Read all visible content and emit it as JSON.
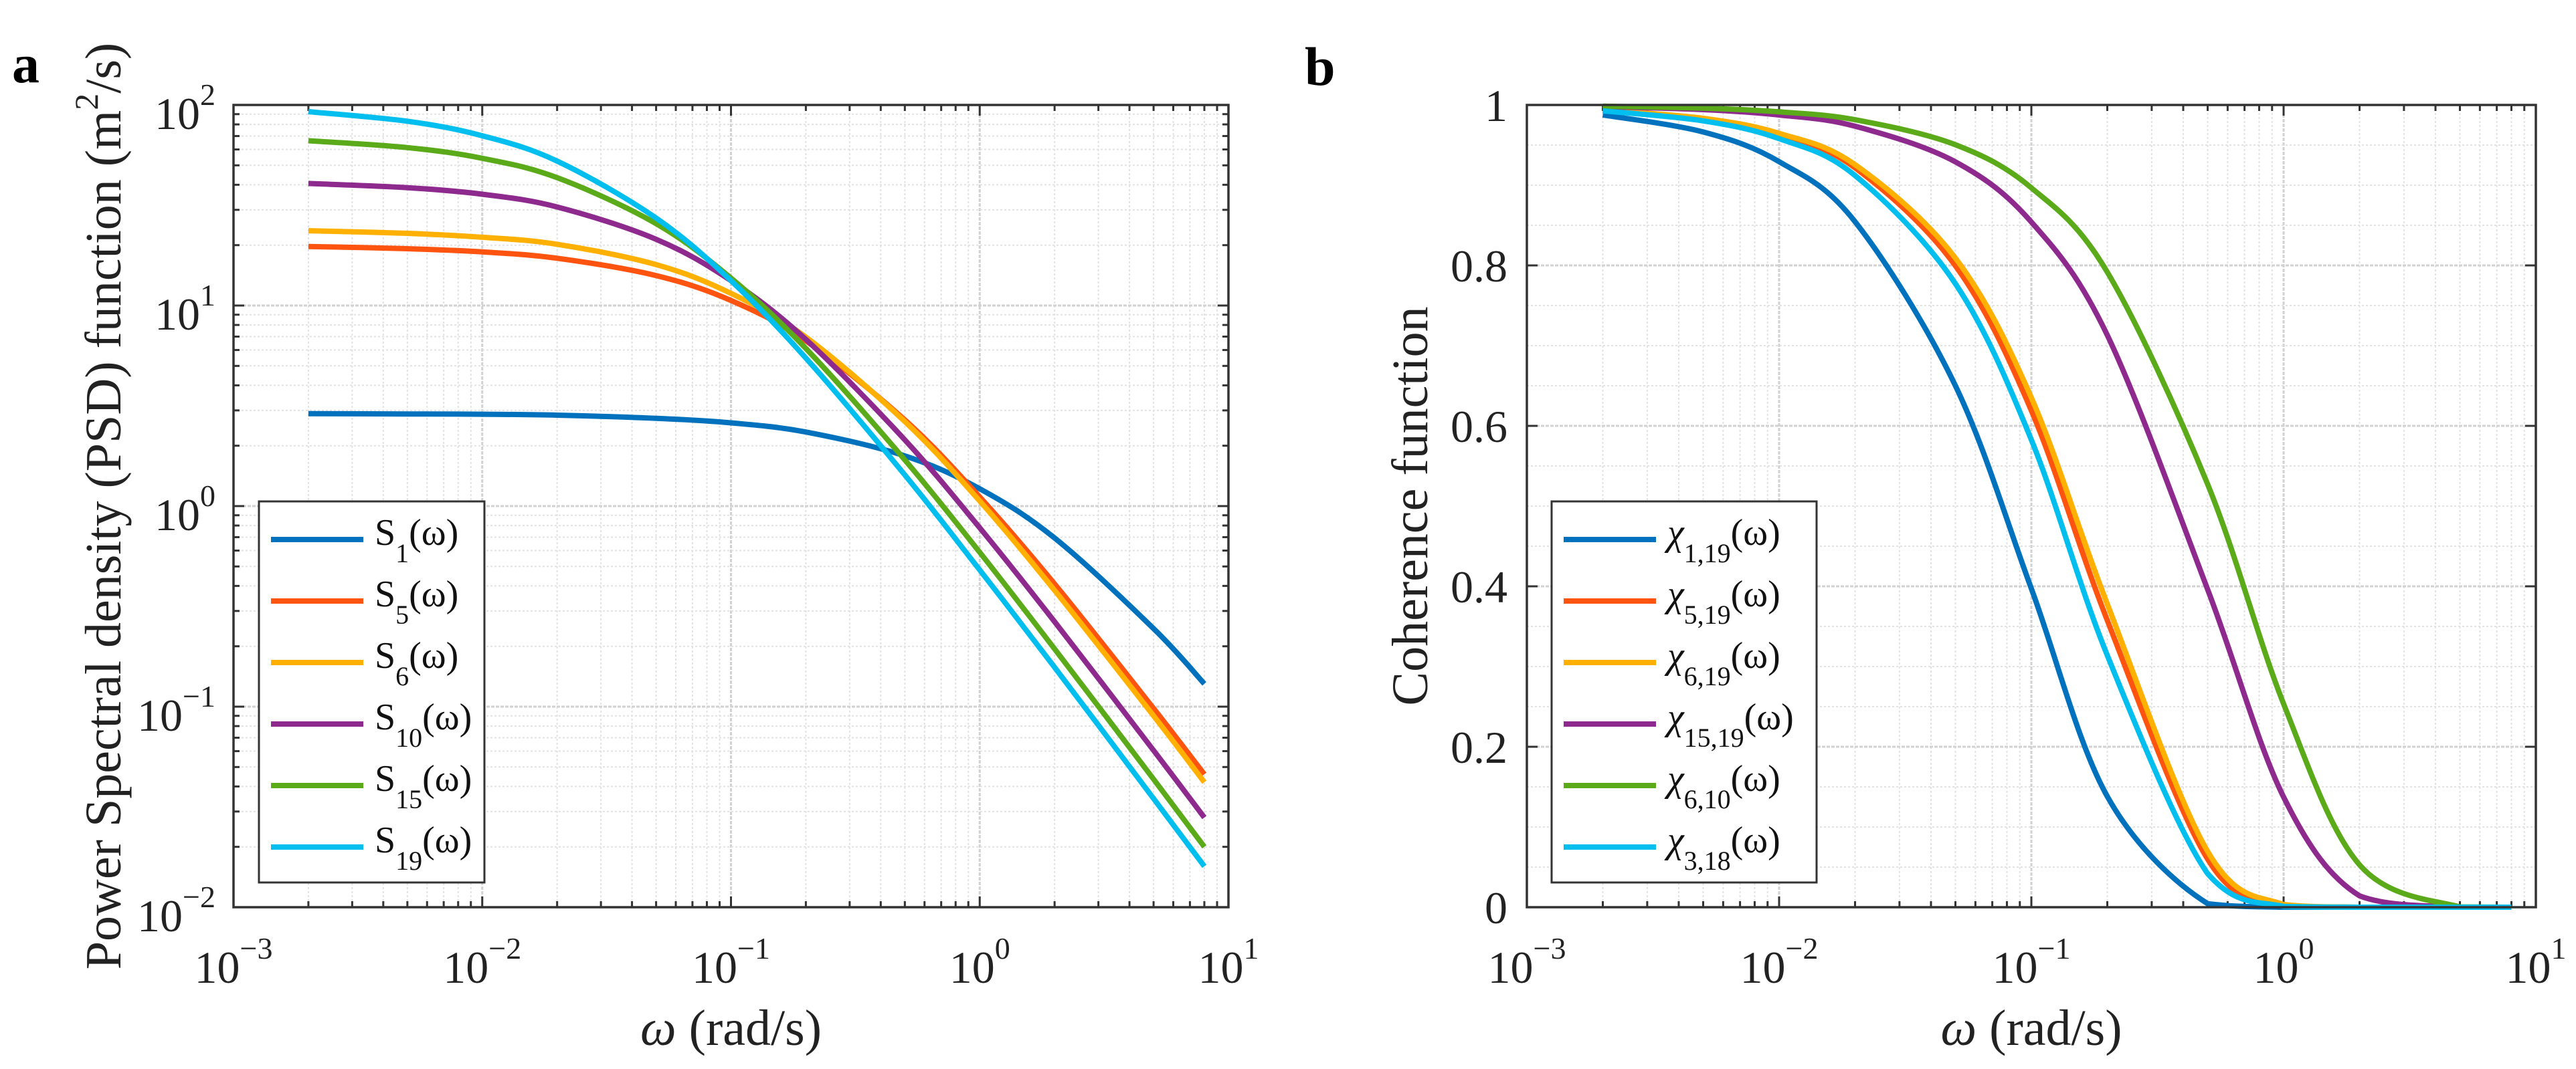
{
  "figure": {
    "panel_a": "a",
    "panel_b": "b"
  },
  "chart_data": [
    {
      "type": "line",
      "panel": "a",
      "xscale": "log",
      "yscale": "log",
      "xlim": [
        0.001,
        10
      ],
      "ylim": [
        0.01,
        100
      ],
      "grid": true,
      "legend_position": "bottom-left",
      "xlabel": {
        "symbol": "ω",
        "text": " (rad/s)"
      },
      "ylabel": {
        "pre": "Power Spectral density (PSD) function (m",
        "sup": "2",
        "post": "/s)"
      },
      "xticks": [
        {
          "base": "10",
          "exp": "−3",
          "value": 0.001
        },
        {
          "base": "10",
          "exp": "−2",
          "value": 0.01
        },
        {
          "base": "10",
          "exp": "−1",
          "value": 0.1
        },
        {
          "base": "10",
          "exp": "0",
          "value": 1
        },
        {
          "base": "10",
          "exp": "1",
          "value": 10
        }
      ],
      "yticks": [
        {
          "base": "10",
          "exp": "−2",
          "value": 0.01
        },
        {
          "base": "10",
          "exp": "−1",
          "value": 0.1
        },
        {
          "base": "10",
          "exp": "0",
          "value": 1
        },
        {
          "base": "10",
          "exp": "1",
          "value": 10
        },
        {
          "base": "10",
          "exp": "2",
          "value": 100
        }
      ],
      "x": [
        0.002,
        0.005,
        0.01,
        0.02,
        0.05,
        0.1,
        0.2,
        0.5,
        1,
        2,
        5,
        8
      ],
      "series": [
        {
          "name": "S1(ω)",
          "base": "S",
          "sub": "1",
          "arg": "(ω)",
          "color": "#0072BD",
          "values": [
            2.89,
            2.88,
            2.87,
            2.84,
            2.74,
            2.6,
            2.34,
            1.78,
            1.22,
            0.693,
            0.245,
            0.13
          ]
        },
        {
          "name": "S5(ω)",
          "base": "S",
          "sub": "5",
          "arg": "(ω)",
          "color": "#FF5310",
          "values": [
            19.7,
            19.2,
            18.5,
            17.2,
            14.1,
            10.6,
            6.67,
            2.69,
            1.11,
            0.409,
            0.098,
            0.046
          ]
        },
        {
          "name": "S6(ω)",
          "base": "S",
          "sub": "6",
          "arg": "(ω)",
          "color": "#FFB000",
          "values": [
            23.6,
            22.9,
            21.9,
            20.2,
            16.0,
            11.5,
            6.96,
            2.64,
            1.06,
            0.38,
            0.09,
            0.042
          ]
        },
        {
          "name": "S10(ω)",
          "base": "S",
          "sub": "10",
          "arg": "(ω)",
          "color": "#8E2A8E",
          "values": [
            40.6,
            38.7,
            35.9,
            31.0,
            21.4,
            13.3,
            6.78,
            2.14,
            0.779,
            0.265,
            0.0605,
            0.028
          ]
        },
        {
          "name": "S15(ω)",
          "base": "S",
          "sub": "15",
          "arg": "(ω)",
          "color": "#5AAA1A",
          "values": [
            66.3,
            61.3,
            54.2,
            43.4,
            25.6,
            13.7,
            6.11,
            1.7,
            0.588,
            0.194,
            0.0435,
            0.02
          ]
        },
        {
          "name": "S19(ω)",
          "base": "S",
          "sub": "19",
          "arg": "(ω)",
          "color": "#00BEEE",
          "values": [
            92.6,
            83.0,
            70.2,
            52.5,
            27.3,
            13.3,
            5.47,
            1.43,
            0.48,
            0.157,
            0.0348,
            0.016
          ]
        }
      ]
    },
    {
      "type": "line",
      "panel": "b",
      "xscale": "log",
      "yscale": "linear",
      "xlim": [
        0.001,
        10
      ],
      "ylim": [
        0,
        1
      ],
      "grid": true,
      "legend_position": "bottom-left",
      "xlabel": {
        "symbol": "ω",
        "text": " (rad/s)"
      },
      "ylabel": {
        "pre": "Coherence function",
        "sup": "",
        "post": ""
      },
      "xticks": [
        {
          "base": "10",
          "exp": "−3",
          "value": 0.001
        },
        {
          "base": "10",
          "exp": "−2",
          "value": 0.01
        },
        {
          "base": "10",
          "exp": "−1",
          "value": 0.1
        },
        {
          "base": "10",
          "exp": "0",
          "value": 1
        },
        {
          "base": "10",
          "exp": "1",
          "value": 10
        }
      ],
      "yticks": [
        {
          "base": "0",
          "exp": "",
          "value": 0
        },
        {
          "base": "0.2",
          "exp": "",
          "value": 0.2
        },
        {
          "base": "0.4",
          "exp": "",
          "value": 0.4
        },
        {
          "base": "0.6",
          "exp": "",
          "value": 0.6
        },
        {
          "base": "0.8",
          "exp": "",
          "value": 0.8
        },
        {
          "base": "1",
          "exp": "",
          "value": 1
        }
      ],
      "x": [
        0.002,
        0.005,
        0.01,
        0.02,
        0.05,
        0.1,
        0.2,
        0.5,
        1,
        2,
        5,
        8
      ],
      "series": [
        {
          "name": "χ1,19(ω)",
          "base": "χ",
          "sub": "1,19",
          "arg": "(ω)",
          "color": "#0072BD",
          "values": [
            0.9876,
            0.9663,
            0.9293,
            0.8545,
            0.65,
            0.3971,
            0.1381,
            0.0044,
            0,
            0,
            0,
            0
          ]
        },
        {
          "name": "χ5,19(ω)",
          "base": "χ",
          "sub": "5,19",
          "arg": "(ω)",
          "color": "#FF5310",
          "values": [
            0.9935,
            0.9824,
            0.9626,
            0.9216,
            0.7995,
            0.619,
            0.3576,
            0.0598,
            0.0024,
            0,
            0,
            0
          ]
        },
        {
          "name": "χ6,19(ω)",
          "base": "χ",
          "sub": "6,19",
          "arg": "(ω)",
          "color": "#FFB000",
          "values": [
            0.9939,
            0.9833,
            0.9646,
            0.9256,
            0.8091,
            0.6351,
            0.3779,
            0.0695,
            0.0033,
            0,
            0,
            0
          ]
        },
        {
          "name": "χ15,19(ω)",
          "base": "χ",
          "sub": "15,19",
          "arg": "(ω)",
          "color": "#8E2A8E",
          "values": [
            0.9979,
            0.9942,
            0.9875,
            0.9735,
            0.9291,
            0.8541,
            0.7131,
            0.396,
            0.1373,
            0.0142,
            0,
            0
          ]
        },
        {
          "name": "χ6,10(ω)",
          "base": "χ",
          "sub": "6,10",
          "arg": "(ω)",
          "color": "#5AAA1A",
          "values": [
            0.9985,
            0.996,
            0.9914,
            0.9816,
            0.9504,
            0.8967,
            0.7917,
            0.5272,
            0.2535,
            0.0528,
            0.0003,
            0
          ]
        },
        {
          "name": "χ3,18(ω)",
          "base": "χ",
          "sub": "3,18",
          "arg": "(ω)",
          "color": "#00BEEE",
          "values": [
            0.9927,
            0.9802,
            0.958,
            0.9121,
            0.7772,
            0.5826,
            0.314,
            0.0418,
            0.0011,
            0,
            0,
            0
          ]
        }
      ]
    }
  ]
}
